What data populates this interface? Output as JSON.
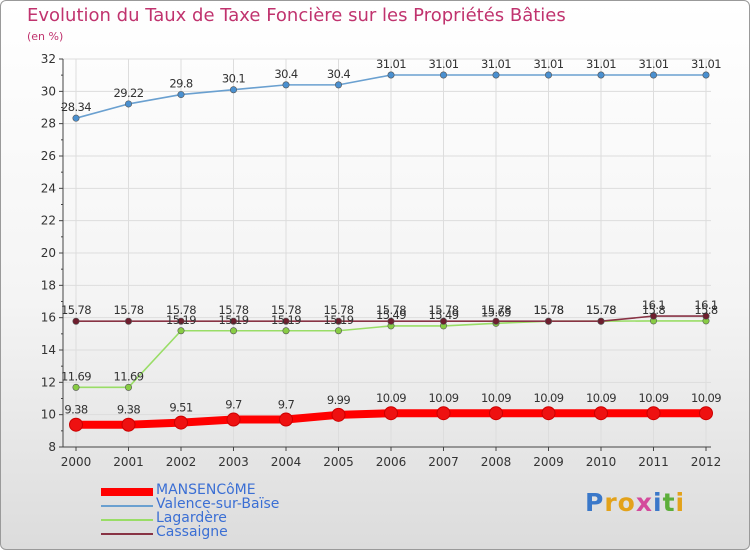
{
  "title": "Evolution du Taux de Taxe Foncière sur les Propriétés Bâties",
  "subtitle": "(en %)",
  "logo": {
    "letters": [
      "P",
      "r",
      "o",
      "x",
      "i",
      "t",
      "i"
    ],
    "colors": [
      "#3a78c9",
      "#e3a21a",
      "#e3a21a",
      "#d44a9c",
      "#3a78c9",
      "#5cae3a",
      "#e3a21a"
    ]
  },
  "chart_data": {
    "type": "line",
    "title": "Evolution du Taux de Taxe Foncière sur les Propriétés Bâties",
    "ylabel": "(en %)",
    "xlabel": "",
    "ylim": [
      8,
      32
    ],
    "yticks": [
      "8",
      "10",
      "12",
      "14",
      "16",
      "18",
      "20",
      "22",
      "24",
      "26",
      "28",
      "30",
      "32"
    ],
    "categories": [
      "2000",
      "2001",
      "2002",
      "2003",
      "2004",
      "2005",
      "2006",
      "2007",
      "2008",
      "2009",
      "2010",
      "2011",
      "2012"
    ],
    "series": [
      {
        "name": "Valence-sur-Baïse",
        "color": "#6aa0d0",
        "marker": "#4a90d0",
        "values": [
          28.34,
          29.22,
          29.8,
          30.1,
          30.4,
          30.4,
          31.01,
          31.01,
          31.01,
          31.01,
          31.01,
          31.01,
          31.01
        ],
        "labels": [
          "28.34",
          "29.22",
          "29.8",
          "30.1",
          "30.4",
          "30.4",
          "31.01",
          "31.01",
          "31.01",
          "31.01",
          "31.01",
          "31.01",
          "31.01"
        ]
      },
      {
        "name": "Lagardère",
        "color": "#99dd66",
        "marker": "#88cc44",
        "values": [
          11.69,
          11.69,
          15.19,
          15.19,
          15.19,
          15.19,
          15.49,
          15.49,
          15.65,
          15.78,
          15.78,
          15.8,
          15.8
        ],
        "labels": [
          "11.69",
          "11.69",
          "15.19",
          "15.19",
          "15.19",
          "15.19",
          "15.49",
          "15.49",
          "15.65",
          "15.78",
          "15.78",
          "15.8",
          "15.8"
        ]
      },
      {
        "name": "Cassaigne",
        "color": "#883344",
        "marker": "#6e1e2e",
        "values": [
          15.78,
          15.78,
          15.78,
          15.78,
          15.78,
          15.78,
          15.78,
          15.78,
          15.78,
          15.78,
          15.78,
          16.1,
          16.1
        ],
        "labels": [
          "15.78",
          "15.78",
          "15.78",
          "15.78",
          "15.78",
          "15.78",
          "15.78",
          "15.78",
          "15.78",
          "15.78",
          "15.78",
          "16.1",
          "16.1"
        ]
      },
      {
        "name": "MANSENCôME",
        "color": "#ff0000",
        "marker": "#ee1111",
        "values": [
          9.38,
          9.38,
          9.51,
          9.7,
          9.7,
          9.99,
          10.09,
          10.09,
          10.09,
          10.09,
          10.09,
          10.09,
          10.09
        ],
        "labels": [
          "9.38",
          "9.38",
          "9.51",
          "9.7",
          "9.7",
          "9.99",
          "10.09",
          "10.09",
          "10.09",
          "10.09",
          "10.09",
          "10.09",
          "10.09"
        ]
      }
    ],
    "legend": [
      {
        "name": "MANSENCôME",
        "color": "#ff0000",
        "thick": true
      },
      {
        "name": "Valence-sur-Baïse",
        "color": "#6aa0d0",
        "thick": false
      },
      {
        "name": "Lagardère",
        "color": "#99dd66",
        "thick": false
      },
      {
        "name": "Cassaigne",
        "color": "#883344",
        "thick": false
      }
    ]
  }
}
